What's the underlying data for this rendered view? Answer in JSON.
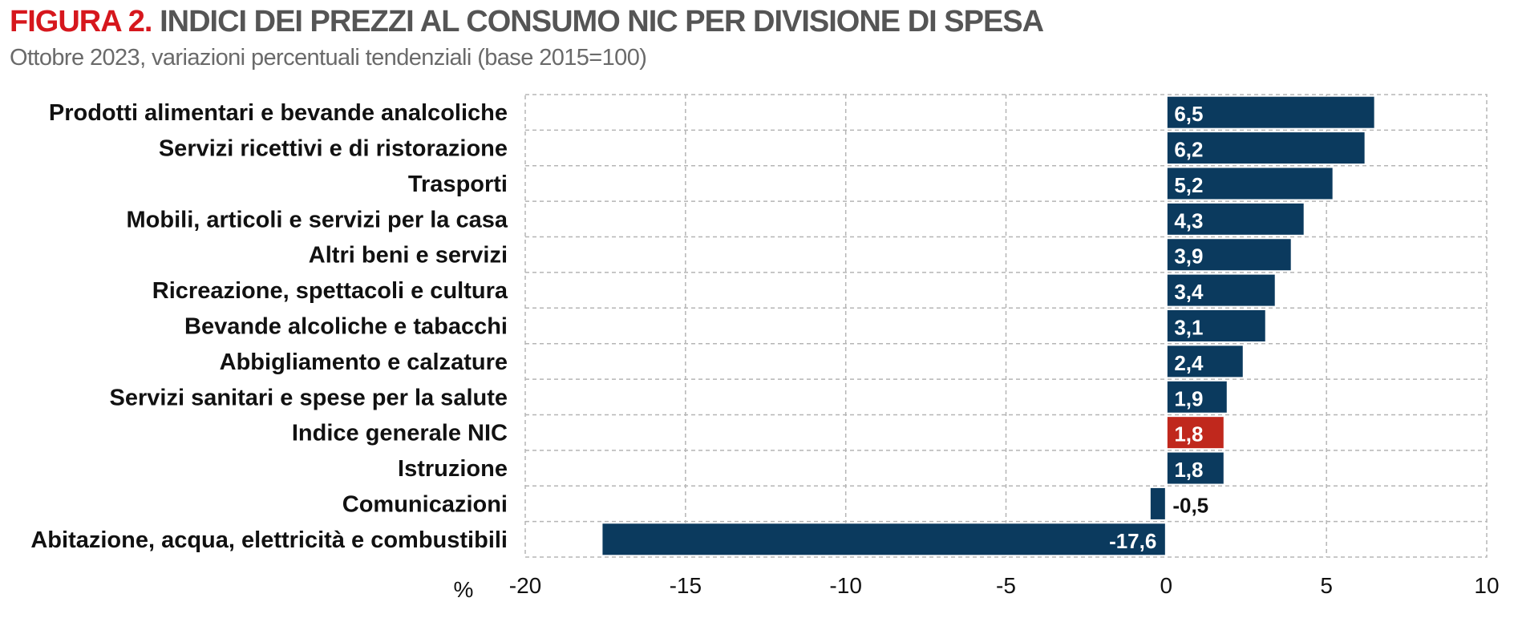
{
  "header": {
    "title_prefix": "FIGURA 2.",
    "title_main": "INDICI DEI PREZZI AL CONSUMO NIC PER DIVISIONE DI SPESA",
    "subtitle": "Ottobre 2023, variazioni percentuali tendenziali (base 2015=100)"
  },
  "chart_data": {
    "type": "bar",
    "orientation": "horizontal",
    "title": "INDICI DEI PREZZI AL CONSUMO NIC PER DIVISIONE DI SPESA",
    "subtitle": "Ottobre 2023, variazioni percentuali tendenziali (base 2015=100)",
    "xlabel": "%",
    "ylabel": "",
    "xlim": [
      -20,
      10
    ],
    "xticks": [
      -20,
      -15,
      -10,
      -5,
      0,
      5,
      10
    ],
    "grid": true,
    "categories": [
      "Prodotti alimentari e bevande analcoliche",
      "Servizi ricettivi e di ristorazione",
      "Trasporti",
      "Mobili, articoli e servizi per la casa",
      "Altri beni e servizi",
      "Ricreazione, spettacoli e cultura",
      "Bevande alcoliche e tabacchi",
      "Abbigliamento e calzature",
      "Servizi sanitari e spese per la salute",
      "Indice generale NIC",
      "Istruzione",
      "Comunicazioni",
      "Abitazione, acqua, elettricità e combustibili"
    ],
    "values": [
      6.5,
      6.2,
      5.2,
      4.3,
      3.9,
      3.4,
      3.1,
      2.4,
      1.9,
      1.8,
      1.8,
      -0.5,
      -17.6
    ],
    "value_labels": [
      "6,5",
      "6,2",
      "5,2",
      "4,3",
      "3,9",
      "3,4",
      "3,1",
      "2,4",
      "1,9",
      "1,8",
      "1,8",
      "-0,5",
      "-17,6"
    ],
    "highlight": "Indice generale NIC",
    "colors": {
      "bar": "#0b3a5e",
      "highlight": "#c0281d",
      "grid": "#b5b5b5"
    }
  }
}
